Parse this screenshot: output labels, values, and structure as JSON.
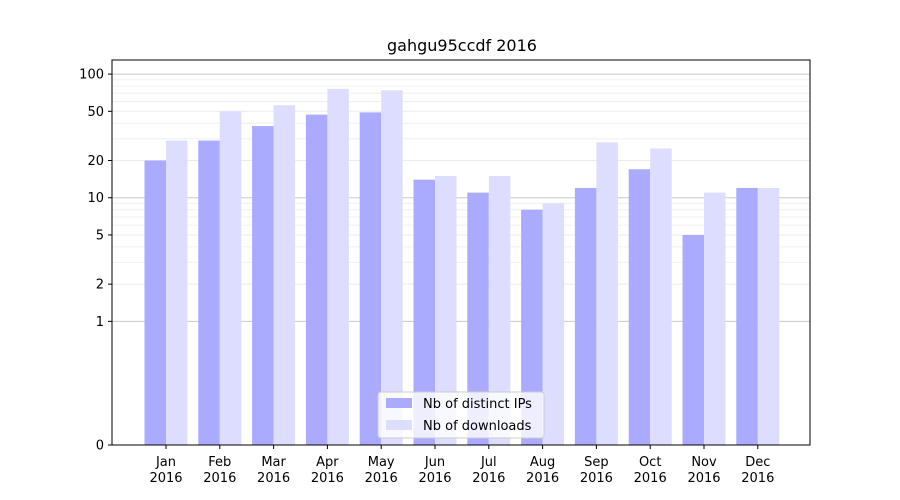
{
  "chart_data": {
    "type": "bar",
    "title": "gahgu95ccdf 2016",
    "xlabel": "",
    "ylabel": "",
    "yscale": "symlog",
    "ylim": [
      0,
      130
    ],
    "yticks": [
      0,
      1,
      2,
      5,
      10,
      20,
      50,
      100
    ],
    "categories": [
      {
        "month": "Jan",
        "year": "2016"
      },
      {
        "month": "Feb",
        "year": "2016"
      },
      {
        "month": "Mar",
        "year": "2016"
      },
      {
        "month": "Apr",
        "year": "2016"
      },
      {
        "month": "May",
        "year": "2016"
      },
      {
        "month": "Jun",
        "year": "2016"
      },
      {
        "month": "Jul",
        "year": "2016"
      },
      {
        "month": "Aug",
        "year": "2016"
      },
      {
        "month": "Sep",
        "year": "2016"
      },
      {
        "month": "Oct",
        "year": "2016"
      },
      {
        "month": "Nov",
        "year": "2016"
      },
      {
        "month": "Dec",
        "year": "2016"
      }
    ],
    "series": [
      {
        "name": "Nb of distinct IPs",
        "color": "#aaaaff",
        "values": [
          20,
          29,
          38,
          47,
          49,
          14,
          11,
          8,
          12,
          17,
          5,
          12
        ]
      },
      {
        "name": "Nb of downloads",
        "color": "#ddddff",
        "values": [
          29,
          50,
          56,
          76,
          74,
          15,
          15,
          9,
          28,
          25,
          11,
          12
        ]
      }
    ],
    "grid": true,
    "legend": "bottom-center"
  }
}
